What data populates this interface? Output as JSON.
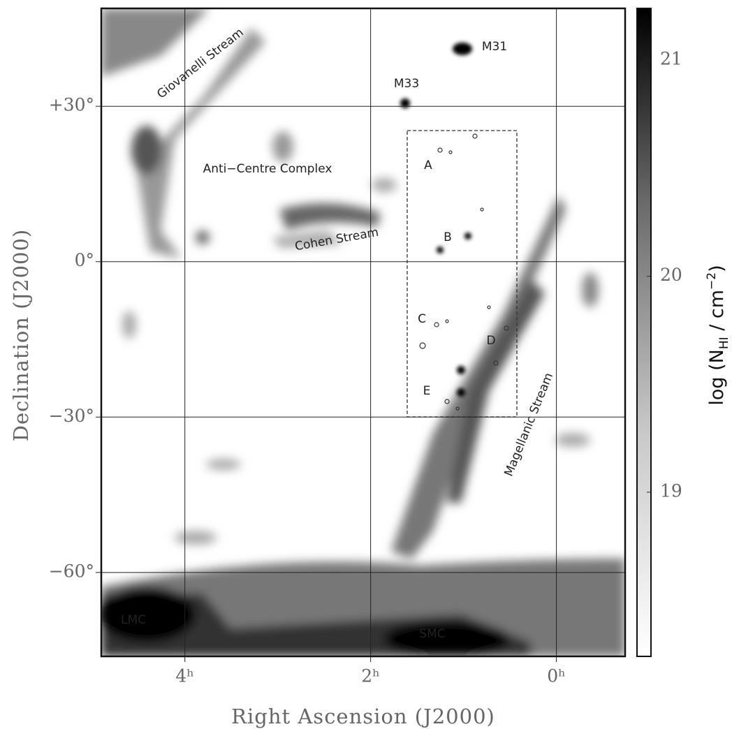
{
  "chart_data": {
    "type": "image",
    "x_label": "Right Ascension (J2000)",
    "y_label": "Declination (J2000)",
    "xlim": [
      4.9,
      -0.74
    ],
    "ylim": [
      -76.2,
      48.9
    ],
    "xticks": [
      {
        "value": 4,
        "label": "4ʰ"
      },
      {
        "value": 2,
        "label": "2ʰ"
      },
      {
        "value": 0,
        "label": "0ʰ"
      }
    ],
    "yticks": [
      {
        "value": 30,
        "label": "+30°"
      },
      {
        "value": 0,
        "label": "0°"
      },
      {
        "value": -30,
        "label": "−30°"
      },
      {
        "value": -60,
        "label": "−60°"
      }
    ],
    "grid": true,
    "colormap": "gray_r",
    "colorbar": {
      "clim": [
        18.24,
        21.24
      ],
      "ticks": [
        19,
        20,
        21
      ],
      "label": {
        "main": "log (N",
        "sub": "HI",
        "mid": " / cm",
        "sup": "−2",
        "end": ")"
      }
    },
    "annotations": [
      "Giovanelli Stream",
      "Anti−Centre Complex",
      "Cohen Stream",
      "M31",
      "M33",
      "A",
      "B",
      "C",
      "D",
      "E",
      "Magellanic Stream",
      "LMC",
      "SMC"
    ]
  }
}
